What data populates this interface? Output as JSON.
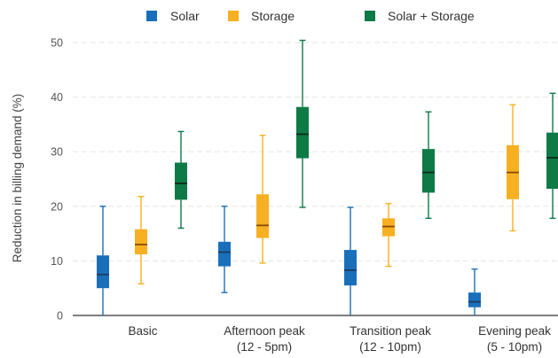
{
  "chart_data": {
    "type": "box",
    "title": "",
    "xlabel": "",
    "ylabel": "Reduction in billing demand (%)",
    "ylim": [
      0,
      50
    ],
    "yticks": [
      0,
      10,
      20,
      30,
      40,
      50
    ],
    "grid": true,
    "legend_position": "top",
    "categories": [
      {
        "lines": [
          "Basic"
        ]
      },
      {
        "lines": [
          "Afternoon peak",
          "(12 - 5pm)"
        ]
      },
      {
        "lines": [
          "Transition peak",
          "(12 - 10pm)"
        ]
      },
      {
        "lines": [
          "Evening peak",
          "(5 - 10pm)"
        ]
      }
    ],
    "series": [
      {
        "name": "Solar",
        "color": "#1a6fba",
        "median_color": "#1a3a66",
        "boxes": [
          {
            "min": 0,
            "q1": 5,
            "median": 7.5,
            "q3": 11,
            "max": 20
          },
          {
            "min": 4.2,
            "q1": 9,
            "median": 11.6,
            "q3": 13.5,
            "max": 20
          },
          {
            "min": 0,
            "q1": 5.5,
            "median": 8.3,
            "q3": 12,
            "max": 19.8
          },
          {
            "min": 0,
            "q1": 1.5,
            "median": 2.5,
            "q3": 4.2,
            "max": 8.5
          }
        ]
      },
      {
        "name": "Storage",
        "color": "#f7b022",
        "median_color": "#8a4b00",
        "boxes": [
          {
            "min": 5.8,
            "q1": 11.2,
            "median": 13,
            "q3": 15.8,
            "max": 21.8
          },
          {
            "min": 9.6,
            "q1": 14.2,
            "median": 16.5,
            "q3": 22.2,
            "max": 33
          },
          {
            "min": 9,
            "q1": 14.5,
            "median": 16.3,
            "q3": 17.8,
            "max": 20.5
          },
          {
            "min": 15.5,
            "q1": 21.3,
            "median": 26.2,
            "q3": 31.2,
            "max": 38.6
          }
        ]
      },
      {
        "name": "Solar + Storage",
        "color": "#0e7a46",
        "median_color": "#0a2d1a",
        "boxes": [
          {
            "min": 16,
            "q1": 21.2,
            "median": 24.2,
            "q3": 28,
            "max": 33.7
          },
          {
            "min": 19.8,
            "q1": 28.8,
            "median": 33.2,
            "q3": 38.2,
            "max": 50.4
          },
          {
            "min": 17.8,
            "q1": 22.5,
            "median": 26.2,
            "q3": 30.5,
            "max": 37.3
          },
          {
            "min": 17.8,
            "q1": 23.2,
            "median": 28.9,
            "q3": 33.5,
            "max": 40.7
          }
        ]
      }
    ]
  }
}
